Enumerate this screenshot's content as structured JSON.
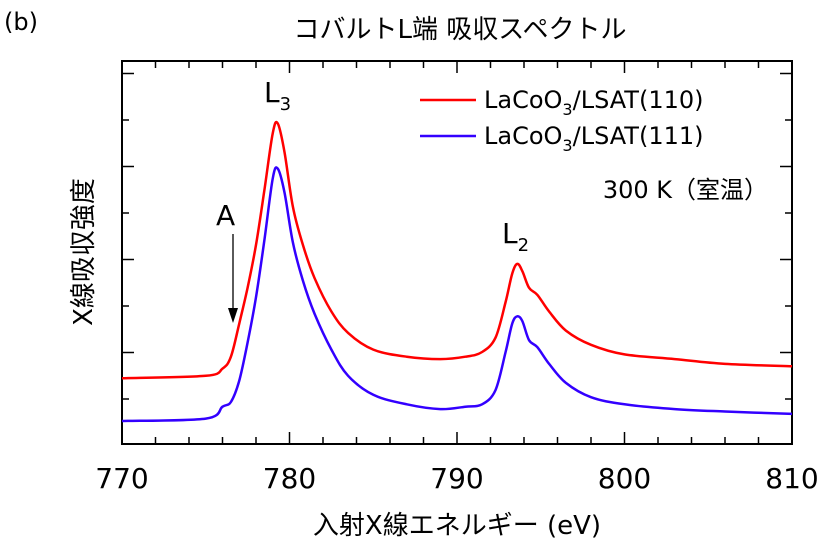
{
  "panel_label": "(b)",
  "chart_data": {
    "type": "line",
    "title": "コバルトL端 吸収スペクトル",
    "xlabel": "入射X線エネルギー (eV)",
    "ylabel": "X線吸収強度",
    "xlim": [
      770,
      810
    ],
    "x_ticks": [
      770,
      780,
      790,
      800,
      810
    ],
    "y_ticks_labeled": false,
    "legend_position": "top-right",
    "temperature_label": "300 K（室温）",
    "annotations": [
      {
        "text": "A",
        "x": 776.5,
        "arrow": true
      },
      {
        "base": "L",
        "sub": "3",
        "x": 779.2
      },
      {
        "base": "L",
        "sub": "2",
        "x": 793.6
      }
    ],
    "series": [
      {
        "name": "LaCoO3/LSAT(110)",
        "name_base": "LaCoO",
        "name_sub": "3",
        "name_rest": "/LSAT(110)",
        "color": "#ff0000",
        "x": [
          770,
          775,
          776,
          776.5,
          777,
          777.5,
          778,
          778.5,
          779,
          779.3,
          779.7,
          780.2,
          780.8,
          781.5,
          782.5,
          783.5,
          785,
          787,
          789,
          790.5,
          791.5,
          792.3,
          792.9,
          793.3,
          793.6,
          793.9,
          794.3,
          794.8,
          795.5,
          796.5,
          798,
          800,
          803,
          806,
          810
        ],
        "y": [
          0.18,
          0.19,
          0.22,
          0.27,
          0.41,
          0.56,
          0.74,
          0.97,
          1.21,
          1.25,
          1.13,
          0.9,
          0.74,
          0.6,
          0.46,
          0.37,
          0.3,
          0.27,
          0.26,
          0.27,
          0.29,
          0.35,
          0.5,
          0.62,
          0.66,
          0.63,
          0.56,
          0.53,
          0.46,
          0.38,
          0.32,
          0.28,
          0.26,
          0.24,
          0.23
        ]
      },
      {
        "name": "LaCoO3/LSAT(111)",
        "name_base": "LaCoO",
        "name_sub": "3",
        "name_rest": "/LSAT(111)",
        "color": "#3300ff",
        "x": [
          770,
          775,
          776,
          776.5,
          777,
          777.5,
          778,
          778.5,
          779,
          779.3,
          779.7,
          780.2,
          780.8,
          781.5,
          782.5,
          783.5,
          785,
          787,
          789,
          790.5,
          791.5,
          792.3,
          792.9,
          793.3,
          793.6,
          793.9,
          794.3,
          794.8,
          795.5,
          796.5,
          798,
          800,
          803,
          806,
          810
        ],
        "y": [
          0.0,
          0.01,
          0.06,
          0.08,
          0.17,
          0.33,
          0.52,
          0.76,
          1.02,
          1.06,
          0.96,
          0.75,
          0.59,
          0.45,
          0.3,
          0.19,
          0.11,
          0.07,
          0.05,
          0.06,
          0.07,
          0.13,
          0.29,
          0.41,
          0.44,
          0.42,
          0.34,
          0.31,
          0.24,
          0.16,
          0.1,
          0.07,
          0.05,
          0.04,
          0.03
        ]
      }
    ]
  }
}
